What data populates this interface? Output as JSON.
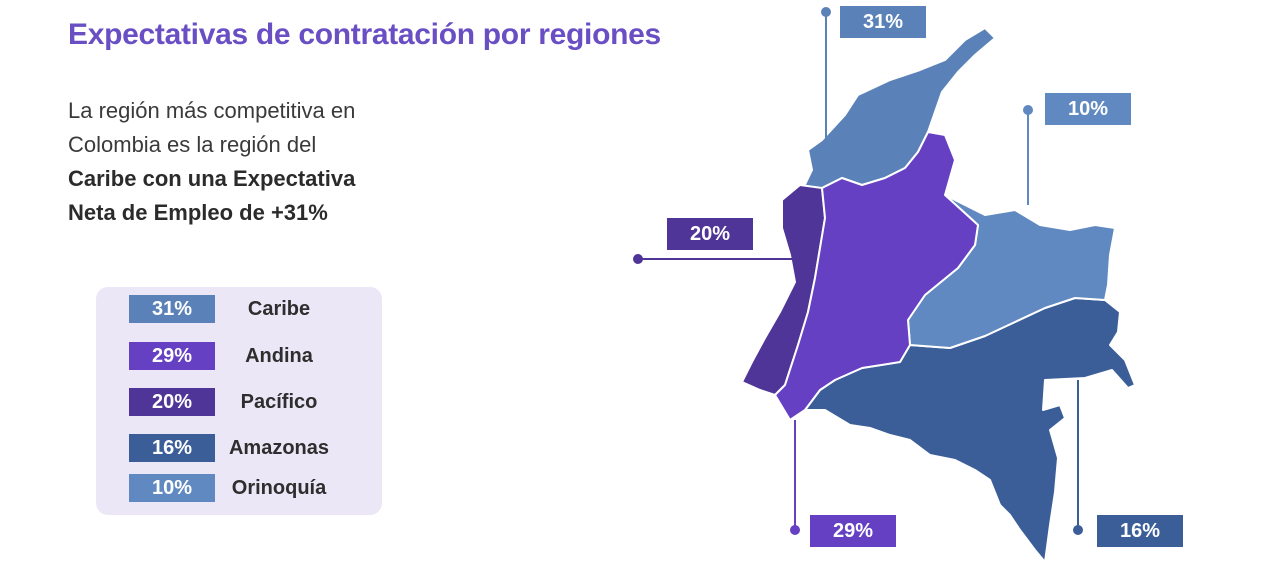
{
  "title": "Expectativas de contratación por regiones",
  "intro": {
    "line1": "La región más competitiva en",
    "line2": "Colombia es la región del",
    "line3": "Caribe con una Expectativa",
    "line4": "Neta de Empleo de +31%"
  },
  "colors": {
    "caribe": "#5b82b8",
    "andina": "#6540c3",
    "pacifico": "#4f3597",
    "amazonas": "#3b5e99",
    "orinoquia": "#5f89c0",
    "title": "#6a4fc4",
    "legend_bg": "#ebe7f7"
  },
  "legend": [
    {
      "key": "caribe",
      "value": "31%",
      "name": "Caribe"
    },
    {
      "key": "andina",
      "value": "29%",
      "name": "Andina"
    },
    {
      "key": "pacifico",
      "value": "20%",
      "name": "Pacífico"
    },
    {
      "key": "amazonas",
      "value": "16%",
      "name": "Amazonas"
    },
    {
      "key": "orinoquia",
      "value": "10%",
      "name": "Orinoquía"
    }
  ],
  "map_callouts": {
    "caribe": "31%",
    "orinoquia": "10%",
    "pacifico": "20%",
    "andina": "29%",
    "amazonas": "16%"
  }
}
